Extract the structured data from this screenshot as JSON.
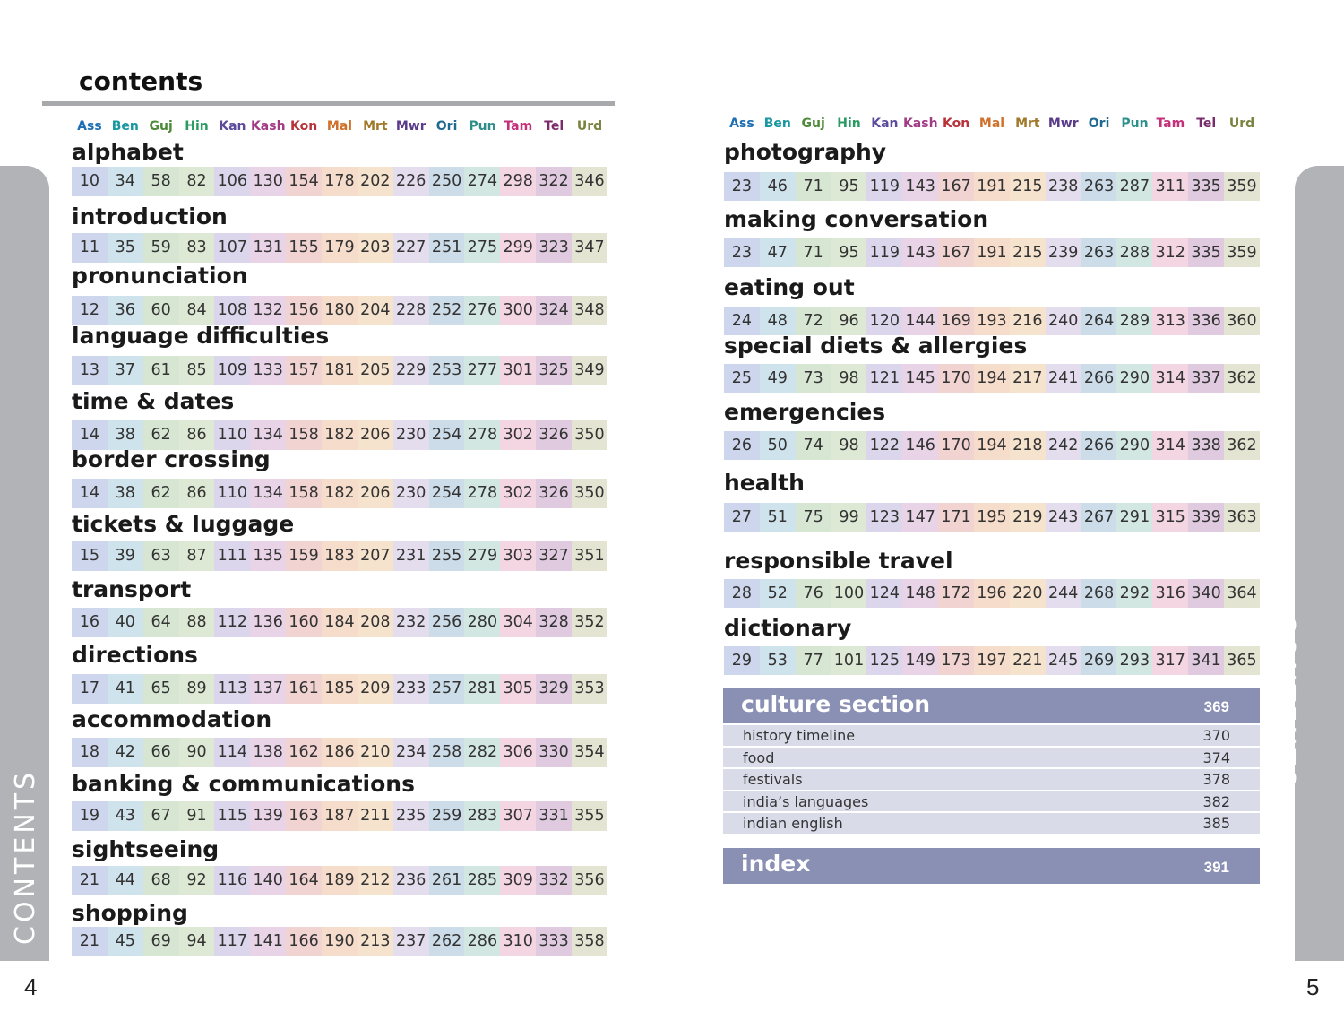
{
  "side_tab_label": "CONTENTS",
  "page_left": "4",
  "page_right": "5",
  "title": "contents",
  "languages": [
    {
      "code": "Ass",
      "color": "#1f6fb2",
      "band": "#cdd6ec"
    },
    {
      "code": "Ben",
      "color": "#1897a0",
      "band": "#cfe3ec"
    },
    {
      "code": "Guj",
      "color": "#4e8a3a",
      "band": "#d6e6d3"
    },
    {
      "code": "Hin",
      "color": "#2b9a62",
      "band": "#dde9d4"
    },
    {
      "code": "Kan",
      "color": "#5b4b9a",
      "band": "#dbd6ec"
    },
    {
      "code": "Kash",
      "color": "#a23a85",
      "band": "#e9d4e7"
    },
    {
      "code": "Kon",
      "color": "#b8323a",
      "band": "#f1d3d2"
    },
    {
      "code": "Mal",
      "color": "#d0702a",
      "band": "#f6dccb"
    },
    {
      "code": "Mrt",
      "color": "#a0782a",
      "band": "#f6e3cd"
    },
    {
      "code": "Mwr",
      "color": "#5a3c8a",
      "band": "#e4ddee"
    },
    {
      "code": "Ori",
      "color": "#1f6a92",
      "band": "#ccdde9"
    },
    {
      "code": "Pun",
      "color": "#2e8f8a",
      "band": "#d3e7e2"
    },
    {
      "code": "Tam",
      "color": "#c4307a",
      "band": "#f4d5e2"
    },
    {
      "code": "Tel",
      "color": "#7a2b6a",
      "band": "#dfcae0"
    },
    {
      "code": "Urd",
      "color": "#7a8340",
      "band": "#e4e4d2"
    }
  ],
  "left_sections": [
    {
      "title": "alphabet",
      "pages": [
        "10",
        "34",
        "58",
        "82",
        "106",
        "130",
        "154",
        "178",
        "202",
        "226",
        "250",
        "274",
        "298",
        "322",
        "346"
      ]
    },
    {
      "title": "introduction",
      "pages": [
        "11",
        "35",
        "59",
        "83",
        "107",
        "131",
        "155",
        "179",
        "203",
        "227",
        "251",
        "275",
        "299",
        "323",
        "347"
      ]
    },
    {
      "title": "pronunciation",
      "pages": [
        "12",
        "36",
        "60",
        "84",
        "108",
        "132",
        "156",
        "180",
        "204",
        "228",
        "252",
        "276",
        "300",
        "324",
        "348"
      ]
    },
    {
      "title": "language difficulties",
      "pages": [
        "13",
        "37",
        "61",
        "85",
        "109",
        "133",
        "157",
        "181",
        "205",
        "229",
        "253",
        "277",
        "301",
        "325",
        "349"
      ]
    },
    {
      "title": "time & dates",
      "pages": [
        "14",
        "38",
        "62",
        "86",
        "110",
        "134",
        "158",
        "182",
        "206",
        "230",
        "254",
        "278",
        "302",
        "326",
        "350"
      ]
    },
    {
      "title": "border crossing",
      "pages": [
        "14",
        "38",
        "62",
        "86",
        "110",
        "134",
        "158",
        "182",
        "206",
        "230",
        "254",
        "278",
        "302",
        "326",
        "350"
      ]
    },
    {
      "title": "tickets & luggage",
      "pages": [
        "15",
        "39",
        "63",
        "87",
        "111",
        "135",
        "159",
        "183",
        "207",
        "231",
        "255",
        "279",
        "303",
        "327",
        "351"
      ]
    },
    {
      "title": "transport",
      "pages": [
        "16",
        "40",
        "64",
        "88",
        "112",
        "136",
        "160",
        "184",
        "208",
        "232",
        "256",
        "280",
        "304",
        "328",
        "352"
      ]
    },
    {
      "title": "directions",
      "pages": [
        "17",
        "41",
        "65",
        "89",
        "113",
        "137",
        "161",
        "185",
        "209",
        "233",
        "257",
        "281",
        "305",
        "329",
        "353"
      ]
    },
    {
      "title": "accommodation",
      "pages": [
        "18",
        "42",
        "66",
        "90",
        "114",
        "138",
        "162",
        "186",
        "210",
        "234",
        "258",
        "282",
        "306",
        "330",
        "354"
      ]
    },
    {
      "title": "banking & communications",
      "pages": [
        "19",
        "43",
        "67",
        "91",
        "115",
        "139",
        "163",
        "187",
        "211",
        "235",
        "259",
        "283",
        "307",
        "331",
        "355"
      ]
    },
    {
      "title": "sightseeing",
      "pages": [
        "21",
        "44",
        "68",
        "92",
        "116",
        "140",
        "164",
        "189",
        "212",
        "236",
        "261",
        "285",
        "309",
        "332",
        "356"
      ]
    },
    {
      "title": "shopping",
      "pages": [
        "21",
        "45",
        "69",
        "94",
        "117",
        "141",
        "166",
        "190",
        "213",
        "237",
        "262",
        "286",
        "310",
        "333",
        "358"
      ]
    }
  ],
  "right_sections": [
    {
      "title": "photography",
      "pages": [
        "23",
        "46",
        "71",
        "95",
        "119",
        "143",
        "167",
        "191",
        "215",
        "238",
        "263",
        "287",
        "311",
        "335",
        "359"
      ]
    },
    {
      "title": "making conversation",
      "pages": [
        "23",
        "47",
        "71",
        "95",
        "119",
        "143",
        "167",
        "191",
        "215",
        "239",
        "263",
        "288",
        "312",
        "335",
        "359"
      ]
    },
    {
      "title": "eating out",
      "pages": [
        "24",
        "48",
        "72",
        "96",
        "120",
        "144",
        "169",
        "193",
        "216",
        "240",
        "264",
        "289",
        "313",
        "336",
        "360"
      ]
    },
    {
      "title": "special diets & allergies",
      "pages": [
        "25",
        "49",
        "73",
        "98",
        "121",
        "145",
        "170",
        "194",
        "217",
        "241",
        "266",
        "290",
        "314",
        "337",
        "362"
      ]
    },
    {
      "title": "emergencies",
      "pages": [
        "26",
        "50",
        "74",
        "98",
        "122",
        "146",
        "170",
        "194",
        "218",
        "242",
        "266",
        "290",
        "314",
        "338",
        "362"
      ]
    },
    {
      "title": "health",
      "pages": [
        "27",
        "51",
        "75",
        "99",
        "123",
        "147",
        "171",
        "195",
        "219",
        "243",
        "267",
        "291",
        "315",
        "339",
        "363"
      ]
    },
    {
      "title": "responsible travel",
      "pages": [
        "28",
        "52",
        "76",
        "100",
        "124",
        "148",
        "172",
        "196",
        "220",
        "244",
        "268",
        "292",
        "316",
        "340",
        "364"
      ]
    },
    {
      "title": "dictionary",
      "pages": [
        "29",
        "53",
        "77",
        "101",
        "125",
        "149",
        "173",
        "197",
        "221",
        "245",
        "269",
        "293",
        "317",
        "341",
        "365"
      ]
    }
  ],
  "culture": {
    "title": "culture section",
    "page": "369",
    "items": [
      {
        "label": "history timeline",
        "page": "370"
      },
      {
        "label": "food",
        "page": "374"
      },
      {
        "label": "festivals",
        "page": "378"
      },
      {
        "label": "india’s languages",
        "page": "382"
      },
      {
        "label": "indian english",
        "page": "385"
      }
    ]
  },
  "index": {
    "title": "index",
    "page": "391"
  }
}
